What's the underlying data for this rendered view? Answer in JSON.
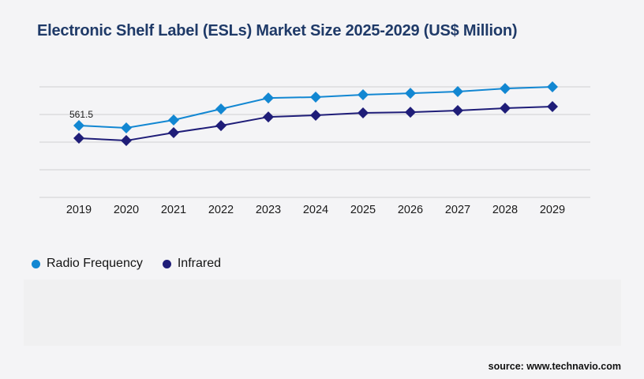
{
  "page": {
    "background": "#f4f4f6",
    "panel_color": "#f0f0f1"
  },
  "header": {
    "title": "Electronic Shelf Label (ESLs) Market Size 2025-2029 (US$ Million)",
    "title_color": "#1f3a68"
  },
  "chart_data": {
    "type": "line",
    "title": "Electronic Shelf Label (ESLs) Market Size 2025-2029 (US$ Million)",
    "categories": [
      "2019",
      "2020",
      "2021",
      "2022",
      "2023",
      "2024",
      "2025",
      "2026",
      "2027",
      "2028",
      "2029"
    ],
    "series": [
      {
        "name": "Radio Frequency",
        "color": "#1287d2",
        "marker": "diamond",
        "values": [
          561.5,
          543,
          605,
          691,
          777,
          784,
          802,
          814,
          827,
          851,
          864
        ]
      },
      {
        "name": "Infrared",
        "color": "#1f1d78",
        "marker": "diamond",
        "values": [
          463,
          444,
          506,
          561,
          629,
          642,
          660,
          666,
          679,
          697,
          710
        ]
      }
    ],
    "annotations": [
      {
        "text": "561.5",
        "series_index": 0,
        "category_index": 0
      }
    ],
    "xlabel": "",
    "ylabel": "",
    "ylim": [
      0,
      864
    ],
    "grid": "horizontal",
    "gridline_count": 5,
    "gridline_color": "#cfcfd1",
    "tick_label_color": "#1a1a1a",
    "legend_position": "bottom-left"
  },
  "legend": {
    "items": [
      {
        "label": "Radio Frequency",
        "color": "#1287d2"
      },
      {
        "label": "Infrared",
        "color": "#1f1d78"
      }
    ]
  },
  "footer": {
    "source": "source: www.technavio.com"
  }
}
